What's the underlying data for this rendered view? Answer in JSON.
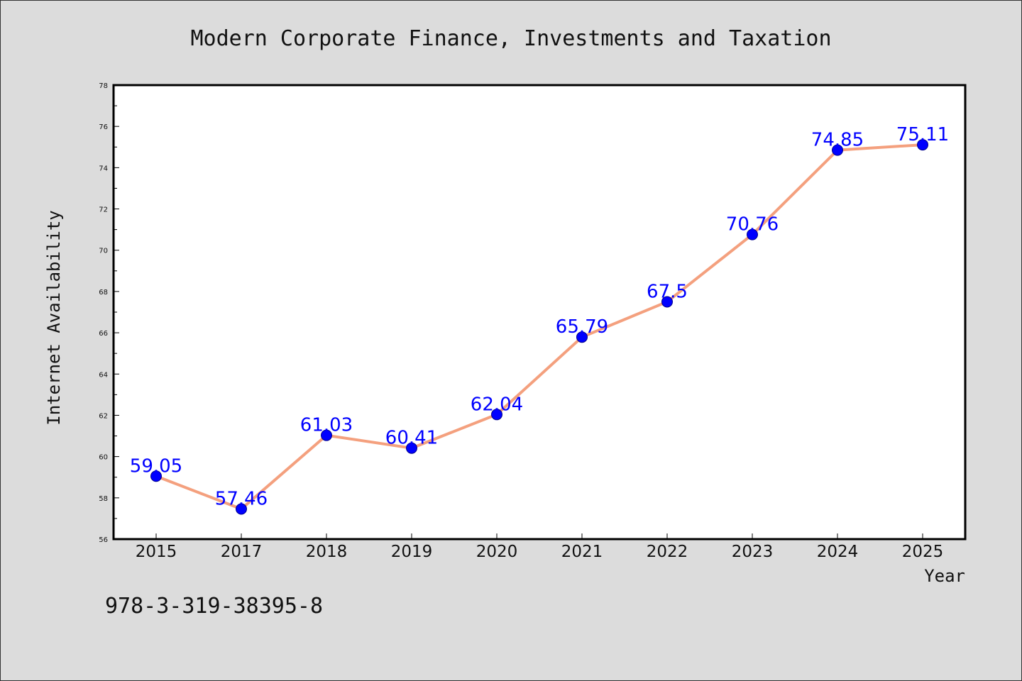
{
  "chart_data": {
    "type": "line",
    "title": "Modern Corporate Finance, Investments and Taxation",
    "xlabel": "Year",
    "ylabel": "Internet Availability",
    "categories": [
      "2015",
      "2017",
      "2018",
      "2019",
      "2020",
      "2021",
      "2022",
      "2023",
      "2024",
      "2025"
    ],
    "series": [
      {
        "values": [
          59.05,
          57.46,
          61.03,
          60.41,
          62.04,
          65.79,
          67.5,
          70.76,
          74.85,
          75.11
        ],
        "labels": [
          "59.05",
          "57.46",
          "61.03",
          "60.41",
          "62.04",
          "65.79",
          "67.5",
          "70.76",
          "74.85",
          "75.11"
        ]
      }
    ],
    "ylim": [
      56,
      78
    ],
    "yticks": [
      "56",
      "58",
      "60",
      "62",
      "64",
      "66",
      "68",
      "70",
      "72",
      "74",
      "76",
      "78"
    ],
    "grid": false,
    "line_color": "#f4a07e",
    "marker_color": "#0000ff",
    "label_color": "#0000ff"
  },
  "footer": {
    "isbn": "978-3-319-38395-8"
  }
}
